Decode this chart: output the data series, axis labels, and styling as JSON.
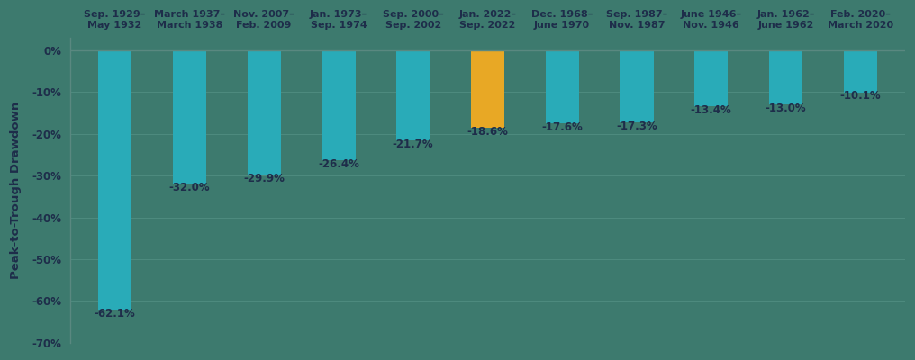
{
  "categories": [
    "Sep. 1929–\nMay 1932",
    "March 1937–\nMarch 1938",
    "Nov. 2007–\nFeb. 2009",
    "Jan. 1973–\nSep. 1974",
    "Sep. 2000–\nSep. 2002",
    "Jan. 2022–\nSep. 2022",
    "Dec. 1968–\nJune 1970",
    "Sep. 1987–\nNov. 1987",
    "June 1946–\nNov. 1946",
    "Jan. 1962–\nJune 1962",
    "Feb. 2020–\nMarch 2020"
  ],
  "values": [
    -62.1,
    -32.0,
    -29.9,
    -26.4,
    -21.7,
    -18.6,
    -17.6,
    -17.3,
    -13.4,
    -13.0,
    -10.1
  ],
  "labels": [
    "-62.1%",
    "-32.0%",
    "-29.9%",
    "-26.4%",
    "-21.7%",
    "-18.6%",
    "-17.6%",
    "-17.3%",
    "-13.4%",
    "-13.0%",
    "-10.1%"
  ],
  "bar_colors": [
    "#29ABB8",
    "#29ABB8",
    "#29ABB8",
    "#29ABB8",
    "#29ABB8",
    "#E8A825",
    "#29ABB8",
    "#29ABB8",
    "#29ABB8",
    "#29ABB8",
    "#29ABB8"
  ],
  "ylabel": "Peak-to-Trough Drawdown",
  "ylim": [
    -70,
    3
  ],
  "yticks": [
    0,
    -10,
    -20,
    -30,
    -40,
    -50,
    -60,
    -70
  ],
  "ytick_labels": [
    "0%",
    "-10%",
    "-20%",
    "-30%",
    "-40%",
    "-50%",
    "-60%",
    "-70%"
  ],
  "background_color": "#3d7a6e",
  "text_color": "#1e2d4a",
  "bar_width": 0.45,
  "label_fontsize": 8.5,
  "ylabel_fontsize": 9.5,
  "xtick_fontsize": 8.0,
  "ytick_fontsize": 8.5,
  "grid_color": "#4d8a7e",
  "spine_color": "#5a8880",
  "zero_line_color": "#5a8880"
}
